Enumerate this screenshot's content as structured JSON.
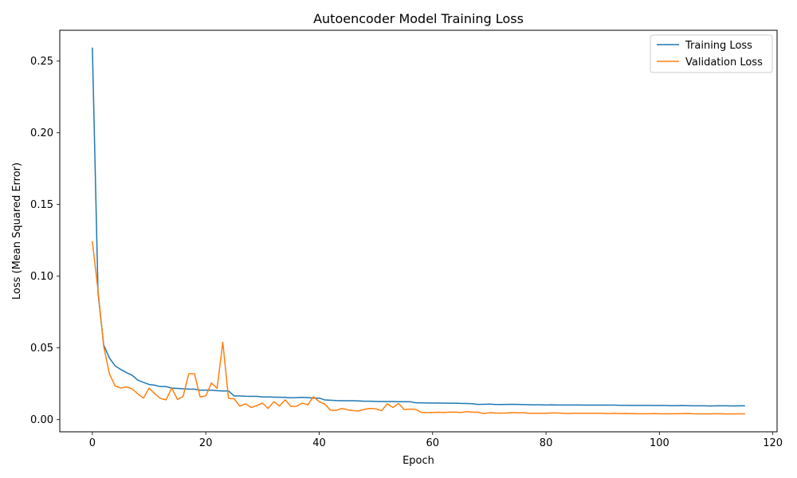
{
  "chart_data": {
    "type": "line",
    "title": "Autoencoder Model Training Loss",
    "xlabel": "Epoch",
    "ylabel": "Loss (Mean Squared Error)",
    "xlim": [
      -5.75,
      120.75
    ],
    "ylim": [
      -0.0085,
      0.2715
    ],
    "xticks": [
      0,
      20,
      40,
      60,
      80,
      100,
      120
    ],
    "yticks": [
      0.0,
      0.05,
      0.1,
      0.15,
      0.2,
      0.25
    ],
    "ytick_labels": [
      "0.00",
      "0.05",
      "0.10",
      "0.15",
      "0.20",
      "0.25"
    ],
    "legend_position": "upper right",
    "grid": false,
    "series": [
      {
        "name": "Training Loss",
        "color": "#1f77b4",
        "values": [
          0.259,
          0.088,
          0.052,
          0.043,
          0.0375,
          0.035,
          0.0328,
          0.031,
          0.0275,
          0.026,
          0.0245,
          0.024,
          0.023,
          0.023,
          0.022,
          0.0218,
          0.0215,
          0.0213,
          0.0212,
          0.0205,
          0.0205,
          0.0205,
          0.0202,
          0.02,
          0.02,
          0.0165,
          0.0165,
          0.0163,
          0.0162,
          0.0162,
          0.0158,
          0.0158,
          0.0157,
          0.0156,
          0.0155,
          0.0152,
          0.0153,
          0.0155,
          0.0153,
          0.015,
          0.015,
          0.0137,
          0.0135,
          0.0133,
          0.0132,
          0.0132,
          0.0132,
          0.013,
          0.0128,
          0.0128,
          0.0127,
          0.0126,
          0.0126,
          0.0126,
          0.0125,
          0.0125,
          0.0125,
          0.0117,
          0.0117,
          0.0116,
          0.0116,
          0.0115,
          0.0115,
          0.0114,
          0.0114,
          0.0113,
          0.0112,
          0.0111,
          0.0106,
          0.0107,
          0.0108,
          0.0106,
          0.0105,
          0.0106,
          0.0107,
          0.0106,
          0.0105,
          0.0104,
          0.0103,
          0.0103,
          0.0102,
          0.0103,
          0.0102,
          0.0102,
          0.0102,
          0.0102,
          0.0102,
          0.0101,
          0.0101,
          0.0101,
          0.0101,
          0.0101,
          0.0101,
          0.01,
          0.01,
          0.0099,
          0.0099,
          0.0099,
          0.0099,
          0.0098,
          0.0098,
          0.0098,
          0.0097,
          0.0097,
          0.0098,
          0.0097,
          0.0096,
          0.0096,
          0.0096,
          0.0095,
          0.0096,
          0.0096,
          0.0096,
          0.0095,
          0.0096,
          0.0096
        ]
      },
      {
        "name": "Validation Loss",
        "color": "#ff7f0e",
        "values": [
          0.124,
          0.09,
          0.051,
          0.032,
          0.0235,
          0.022,
          0.0228,
          0.0215,
          0.018,
          0.015,
          0.022,
          0.018,
          0.0148,
          0.0138,
          0.022,
          0.014,
          0.0162,
          0.032,
          0.032,
          0.0158,
          0.0165,
          0.0255,
          0.0218,
          0.054,
          0.0148,
          0.0145,
          0.0094,
          0.011,
          0.0085,
          0.0098,
          0.0115,
          0.0078,
          0.0125,
          0.0095,
          0.0138,
          0.0092,
          0.0093,
          0.0115,
          0.0103,
          0.016,
          0.0125,
          0.0108,
          0.0065,
          0.0065,
          0.0078,
          0.0068,
          0.0063,
          0.006,
          0.0072,
          0.0078,
          0.0075,
          0.0062,
          0.011,
          0.0085,
          0.0112,
          0.007,
          0.0073,
          0.0072,
          0.005,
          0.0049,
          0.005,
          0.0051,
          0.005,
          0.0052,
          0.0052,
          0.005,
          0.0055,
          0.0052,
          0.0052,
          0.0042,
          0.0048,
          0.0046,
          0.0045,
          0.0046,
          0.0049,
          0.0047,
          0.0048,
          0.0044,
          0.0044,
          0.0044,
          0.0044,
          0.0046,
          0.0046,
          0.0044,
          0.0043,
          0.0044,
          0.0044,
          0.0044,
          0.0044,
          0.0044,
          0.0044,
          0.0042,
          0.0044,
          0.0042,
          0.0043,
          0.0042,
          0.0041,
          0.0041,
          0.0041,
          0.0042,
          0.0041,
          0.004,
          0.0041,
          0.0041,
          0.0042,
          0.0043,
          0.0041,
          0.004,
          0.004,
          0.004,
          0.0041,
          0.0041,
          0.0039,
          0.004,
          0.004,
          0.004
        ]
      }
    ]
  }
}
